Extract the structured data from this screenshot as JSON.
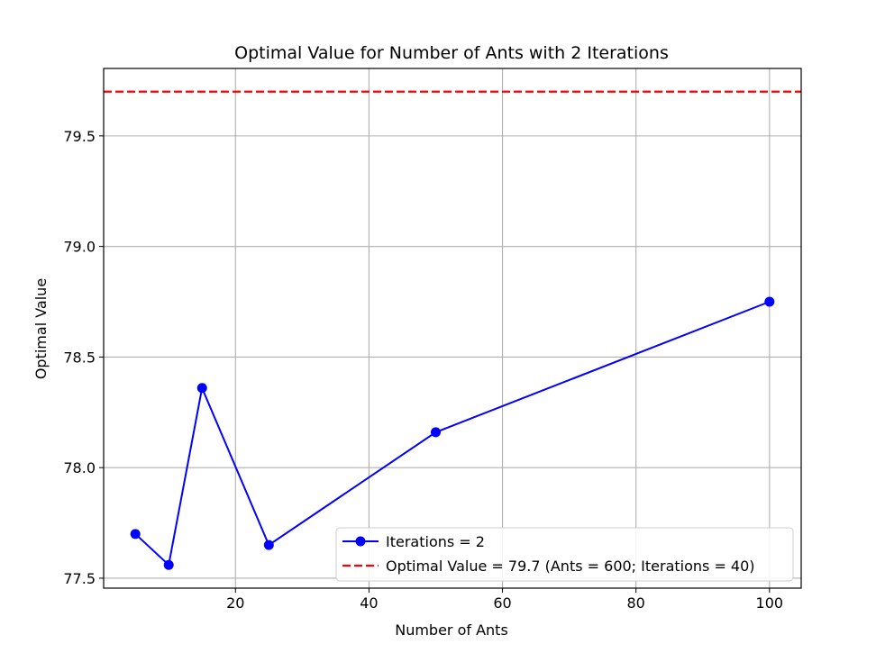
{
  "chart_data": {
    "type": "line",
    "title": "Optimal Value for Number of Ants with 2 Iterations",
    "xlabel": "Number of Ants",
    "ylabel": "Optimal Value",
    "xlim": [
      0.25,
      104.75
    ],
    "ylim": [
      77.455,
      79.805
    ],
    "xticks": [
      20,
      40,
      60,
      80,
      100
    ],
    "yticks": [
      77.5,
      78.0,
      78.5,
      79.0,
      79.5
    ],
    "xtick_labels": [
      "20",
      "40",
      "60",
      "80",
      "100"
    ],
    "ytick_labels": [
      "77.5",
      "78.0",
      "78.5",
      "79.0",
      "79.5"
    ],
    "grid": true,
    "legend_position": "lower-right",
    "series": [
      {
        "name": "Iterations = 2",
        "x": [
          5,
          10,
          15,
          25,
          50,
          100
        ],
        "y": [
          77.7,
          77.56,
          78.36,
          77.65,
          78.16,
          78.75
        ],
        "color": "#0000ff",
        "style": "solid",
        "marker": "circle"
      }
    ],
    "reference_lines": [
      {
        "name": "Optimal Value = 79.7 (Ants = 600; Iterations = 40)",
        "y": 79.7,
        "color": "#ff0000",
        "style": "dashed"
      }
    ]
  }
}
